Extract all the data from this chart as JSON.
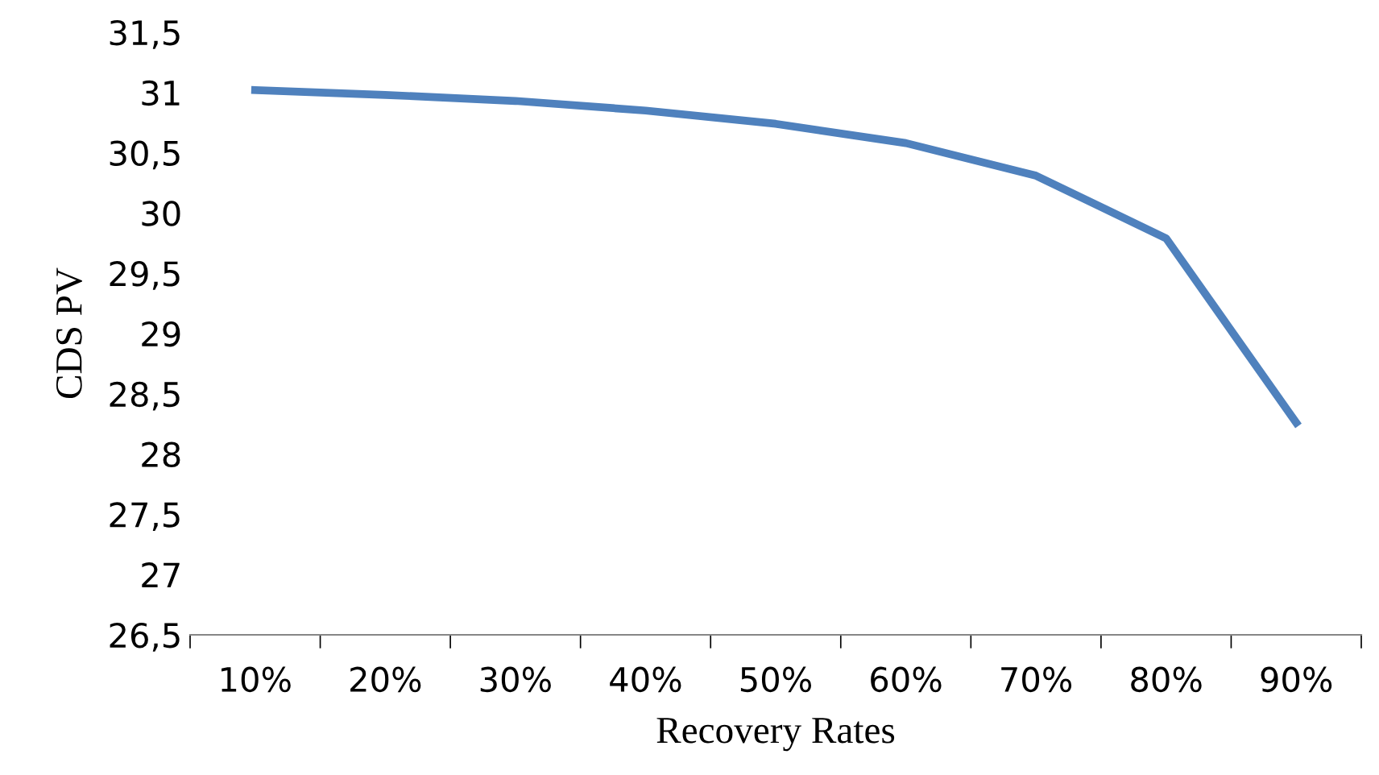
{
  "chart_data": {
    "type": "line",
    "xlabel": "Recovery Rates",
    "ylabel": "CDS PV",
    "categories": [
      "10%",
      "20%",
      "30%",
      "40%",
      "50%",
      "60%",
      "70%",
      "80%",
      "90%"
    ],
    "series": [
      {
        "color": "#4f81bd",
        "values": [
          31.02,
          30.98,
          30.93,
          30.85,
          30.74,
          30.58,
          30.31,
          29.79,
          28.26
        ]
      }
    ],
    "ylim": [
      26.5,
      31.5
    ],
    "yticks": [
      {
        "value": 26.5,
        "label": "26,5"
      },
      27,
      {
        "value": 27.5,
        "label": "27,5"
      },
      28,
      {
        "value": 28.5,
        "label": "28,5"
      },
      29,
      {
        "value": 29.5,
        "label": "29,5"
      },
      30,
      {
        "value": 30.5,
        "label": "30,5"
      },
      31,
      {
        "value": 31.5,
        "label": "31,5"
      }
    ],
    "grid": false,
    "legend": false,
    "marker": "none",
    "line_style": "solid"
  }
}
